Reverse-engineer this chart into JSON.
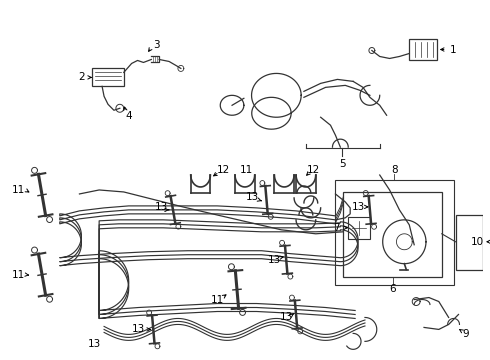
{
  "bg_color": "#ffffff",
  "line_color": "#333333",
  "fig_width": 4.9,
  "fig_height": 3.6,
  "dpi": 100,
  "label_fontsize": 7.5,
  "label_color": "#000000"
}
